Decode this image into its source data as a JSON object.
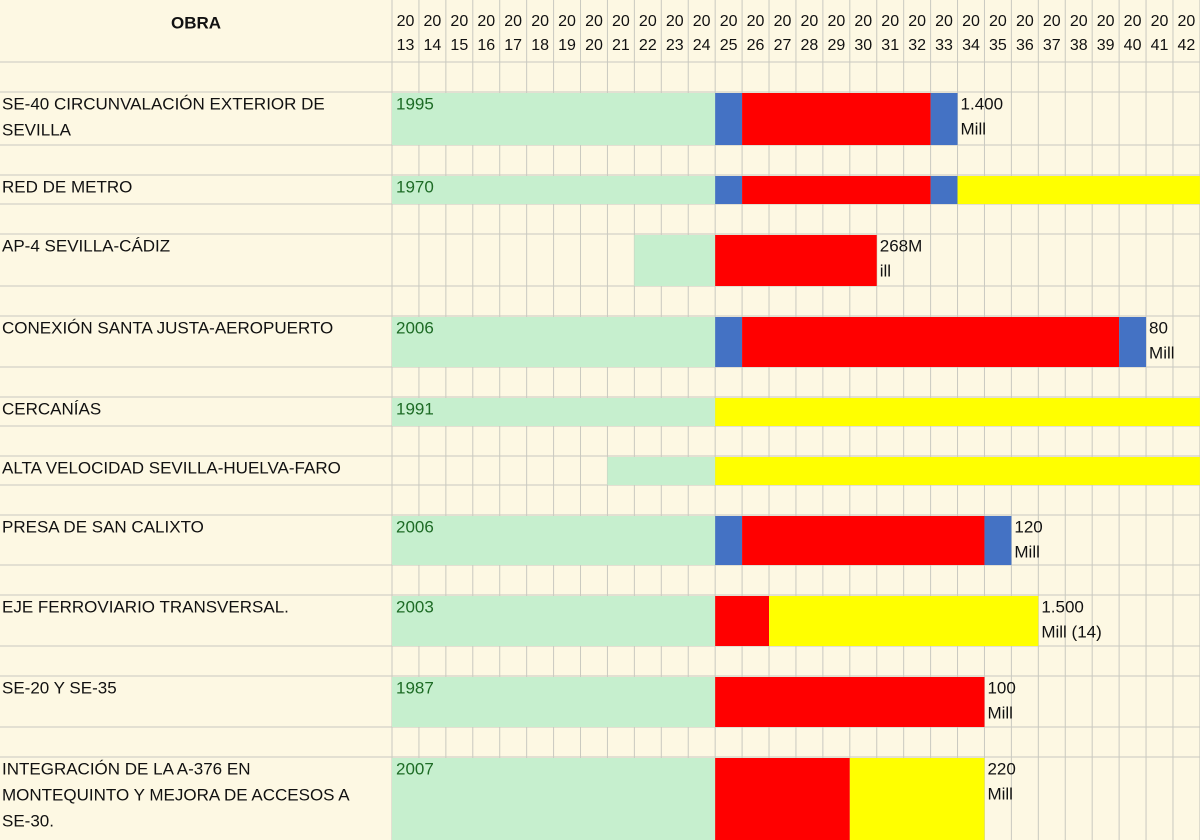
{
  "header": {
    "title": "OBRA"
  },
  "years": [
    {
      "value": 2013,
      "century": "20",
      "decade": "13"
    },
    {
      "value": 2014,
      "century": "20",
      "decade": "14"
    },
    {
      "value": 2015,
      "century": "20",
      "decade": "15"
    },
    {
      "value": 2016,
      "century": "20",
      "decade": "16"
    },
    {
      "value": 2017,
      "century": "20",
      "decade": "17"
    },
    {
      "value": 2018,
      "century": "20",
      "decade": "18"
    },
    {
      "value": 2019,
      "century": "20",
      "decade": "19"
    },
    {
      "value": 2020,
      "century": "20",
      "decade": "20"
    },
    {
      "value": 2021,
      "century": "20",
      "decade": "21"
    },
    {
      "value": 2022,
      "century": "20",
      "decade": "22"
    },
    {
      "value": 2023,
      "century": "20",
      "decade": "23"
    },
    {
      "value": 2024,
      "century": "20",
      "decade": "24"
    },
    {
      "value": 2025,
      "century": "20",
      "decade": "25"
    },
    {
      "value": 2026,
      "century": "20",
      "decade": "26"
    },
    {
      "value": 2027,
      "century": "20",
      "decade": "27"
    },
    {
      "value": 2028,
      "century": "20",
      "decade": "28"
    },
    {
      "value": 2029,
      "century": "20",
      "decade": "29"
    },
    {
      "value": 2030,
      "century": "20",
      "decade": "30"
    },
    {
      "value": 2031,
      "century": "20",
      "decade": "31"
    },
    {
      "value": 2032,
      "century": "20",
      "decade": "32"
    },
    {
      "value": 2033,
      "century": "20",
      "decade": "33"
    },
    {
      "value": 2034,
      "century": "20",
      "decade": "34"
    },
    {
      "value": 2035,
      "century": "20",
      "decade": "35"
    },
    {
      "value": 2036,
      "century": "20",
      "decade": "36"
    },
    {
      "value": 2037,
      "century": "20",
      "decade": "37"
    },
    {
      "value": 2038,
      "century": "20",
      "decade": "38"
    },
    {
      "value": 2039,
      "century": "20",
      "decade": "39"
    },
    {
      "value": 2040,
      "century": "20",
      "decade": "40"
    },
    {
      "value": 2041,
      "century": "20",
      "decade": "41"
    },
    {
      "value": 2042,
      "century": "20",
      "decade": "42"
    }
  ],
  "rows": [
    {
      "name": [
        "SE-40 CIRCUNVALACIÓN EXTERIOR DE",
        "SEVILLA"
      ],
      "start": "1995",
      "segments": [
        {
          "from": 2013,
          "to": 2024,
          "color": "#c6efce"
        },
        {
          "from": 2025,
          "to": 2025,
          "color": "#4472c4"
        },
        {
          "from": 2026,
          "to": 2032,
          "color": "#ff0000"
        },
        {
          "from": 2033,
          "to": 2033,
          "color": "#4472c4"
        }
      ],
      "cost": [
        "1.400",
        "Mill"
      ]
    },
    {
      "name": [
        "RED DE METRO"
      ],
      "start": "1970",
      "segments": [
        {
          "from": 2013,
          "to": 2024,
          "color": "#c6efce"
        },
        {
          "from": 2025,
          "to": 2025,
          "color": "#4472c4"
        },
        {
          "from": 2026,
          "to": 2032,
          "color": "#ff0000"
        },
        {
          "from": 2033,
          "to": 2033,
          "color": "#4472c4"
        },
        {
          "from": 2034,
          "to": 2042,
          "color": "#ffff00"
        }
      ]
    },
    {
      "name": [
        "AP-4 SEVILLA-CÁDIZ"
      ],
      "segments": [
        {
          "from": 2022,
          "to": 2024,
          "color": "#c6efce"
        },
        {
          "from": 2025,
          "to": 2030,
          "color": "#ff0000"
        }
      ],
      "cost": [
        "268M",
        "ill"
      ]
    },
    {
      "name": [
        "CONEXIÓN SANTA JUSTA-AEROPUERTO"
      ],
      "start": "2006",
      "segments": [
        {
          "from": 2013,
          "to": 2024,
          "color": "#c6efce"
        },
        {
          "from": 2025,
          "to": 2025,
          "color": "#4472c4"
        },
        {
          "from": 2026,
          "to": 2039,
          "color": "#ff0000"
        },
        {
          "from": 2040,
          "to": 2040,
          "color": "#4472c4"
        }
      ],
      "cost": [
        "80",
        "Mill"
      ]
    },
    {
      "name": [
        "CERCANÍAS"
      ],
      "start": "1991",
      "segments": [
        {
          "from": 2013,
          "to": 2024,
          "color": "#c6efce"
        },
        {
          "from": 2025,
          "to": 2042,
          "color": "#ffff00"
        }
      ]
    },
    {
      "name": [
        "ALTA VELOCIDAD SEVILLA-HUELVA-FARO"
      ],
      "segments": [
        {
          "from": 2021,
          "to": 2024,
          "color": "#c6efce"
        },
        {
          "from": 2025,
          "to": 2042,
          "color": "#ffff00"
        }
      ]
    },
    {
      "name": [
        "PRESA DE SAN CALIXTO"
      ],
      "start": "2006",
      "segments": [
        {
          "from": 2013,
          "to": 2024,
          "color": "#c6efce"
        },
        {
          "from": 2025,
          "to": 2025,
          "color": "#4472c4"
        },
        {
          "from": 2026,
          "to": 2034,
          "color": "#ff0000"
        },
        {
          "from": 2035,
          "to": 2035,
          "color": "#4472c4"
        }
      ],
      "cost": [
        "120",
        "Mill"
      ]
    },
    {
      "name": [
        "EJE FERROVIARIO TRANSVERSAL."
      ],
      "start": "2003",
      "segments": [
        {
          "from": 2013,
          "to": 2024,
          "color": "#c6efce"
        },
        {
          "from": 2025,
          "to": 2026,
          "color": "#ff0000"
        },
        {
          "from": 2027,
          "to": 2036,
          "color": "#ffff00"
        }
      ],
      "cost": [
        "1.500",
        "Mill (14)"
      ]
    },
    {
      "name": [
        "SE-20 Y SE-35"
      ],
      "start": "1987",
      "segments": [
        {
          "from": 2013,
          "to": 2024,
          "color": "#c6efce"
        },
        {
          "from": 2025,
          "to": 2034,
          "color": "#ff0000"
        }
      ],
      "cost": [
        "100",
        "Mill"
      ]
    },
    {
      "name": [
        "INTEGRACIÓN DE LA A-376 EN",
        "MONTEQUINTO Y MEJORA DE ACCESOS A",
        "SE-30."
      ],
      "start": "2007",
      "segments": [
        {
          "from": 2013,
          "to": 2024,
          "color": "#c6efce"
        },
        {
          "from": 2025,
          "to": 2029,
          "color": "#ff0000"
        },
        {
          "from": 2030,
          "to": 2034,
          "color": "#ffff00"
        }
      ],
      "cost": [
        "220",
        "Mill"
      ]
    }
  ]
}
